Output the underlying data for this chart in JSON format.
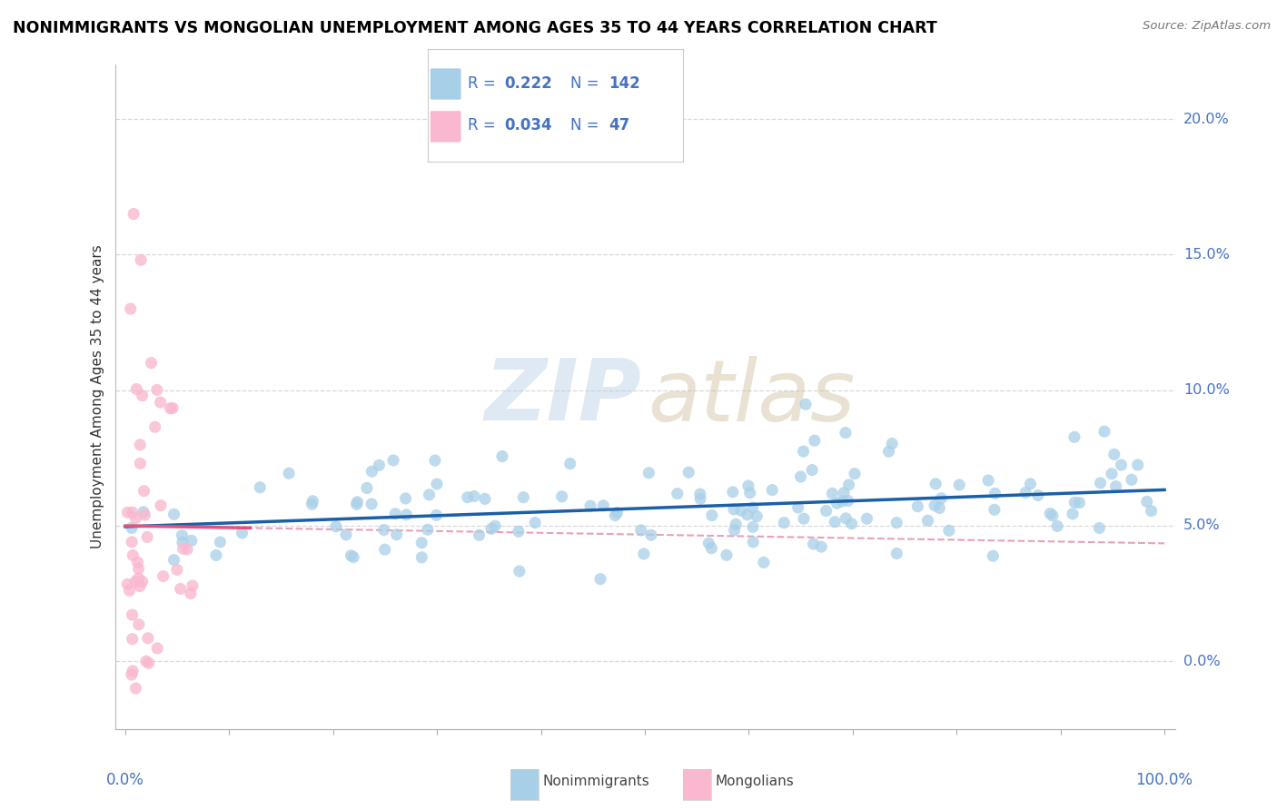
{
  "title": "NONIMMIGRANTS VS MONGOLIAN UNEMPLOYMENT AMONG AGES 35 TO 44 YEARS CORRELATION CHART",
  "source_text": "Source: ZipAtlas.com",
  "ylabel": "Unemployment Among Ages 35 to 44 years",
  "xtick_left_label": "0.0%",
  "xtick_right_label": "100.0%",
  "xlim": [
    -1,
    101
  ],
  "ylim": [
    -2.5,
    22
  ],
  "yticks": [
    0,
    5,
    10,
    15,
    20
  ],
  "ytick_labels": [
    "0.0%",
    "5.0%",
    "10.0%",
    "15.0%",
    "20.0%"
  ],
  "watermark_zip": "ZIP",
  "watermark_atlas": "atlas",
  "legend_R_nonimm": "0.222",
  "legend_N_nonimm": "142",
  "legend_R_mong": "0.034",
  "legend_N_mong": "47",
  "blue_scatter_color": "#a8cfe8",
  "pink_scatter_color": "#f9b8d0",
  "blue_line_color": "#1a5fa8",
  "pink_line_color": "#e8507a",
  "dashed_line_color": "#e8a0b8",
  "grid_color": "#d8d8d8",
  "label_color": "#4472c4",
  "legend_nonimm_label": "Nonimmigrants",
  "legend_mong_label": "Mongolians"
}
